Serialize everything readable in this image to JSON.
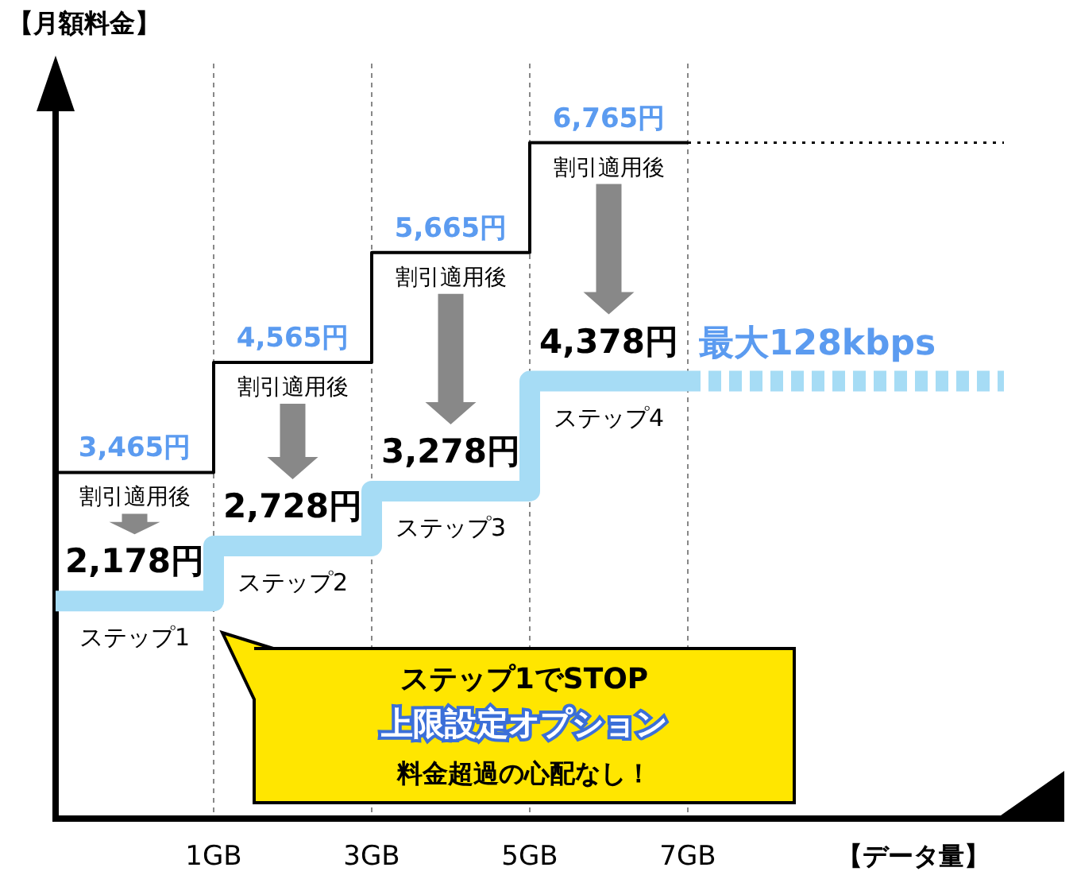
{
  "chart_data": {
    "type": "step",
    "ylabel": "【月額料金】",
    "xlabel": "【データ量】",
    "categories": [
      null,
      "1GB",
      "3GB",
      "5GB",
      "7GB",
      null,
      null
    ],
    "tick_labels": "x",
    "grid": "x",
    "series": [
      {
        "color": "#000000",
        "line_style": "solid",
        "values": [
          3465,
          4565,
          5665,
          6765,
          6765,
          null,
          null
        ],
        "value_labels": [
          "3,465円",
          "4,565円",
          "5,665円",
          "6,765円",
          null,
          null,
          null
        ]
      },
      {
        "color": "#000000",
        "line_style": "dotted",
        "values": [
          null,
          null,
          null,
          null,
          6765,
          6765,
          6765
        ]
      },
      {
        "color": "#a6dcf5",
        "line_style": "solid",
        "values": [
          2178,
          2728,
          3278,
          4378,
          4378,
          null,
          null
        ],
        "value_labels": [
          "2,178円",
          "2,728円",
          "3,278円",
          "4,378円",
          null,
          null,
          null
        ]
      },
      {
        "color": "#a6dcf5",
        "line_style": "dashed",
        "values": [
          null,
          null,
          null,
          null,
          4378,
          4378,
          4378
        ]
      }
    ],
    "annotations": [
      "割引適用後",
      "割引適用後",
      "割引適用後",
      "割引適用後",
      "ステップ1",
      "ステップ2",
      "ステップ3",
      "ステップ4",
      "最大128kbps",
      "ステップ1でSTOP",
      "上限設定オプション",
      "料金超過の心配なし！"
    ]
  }
}
